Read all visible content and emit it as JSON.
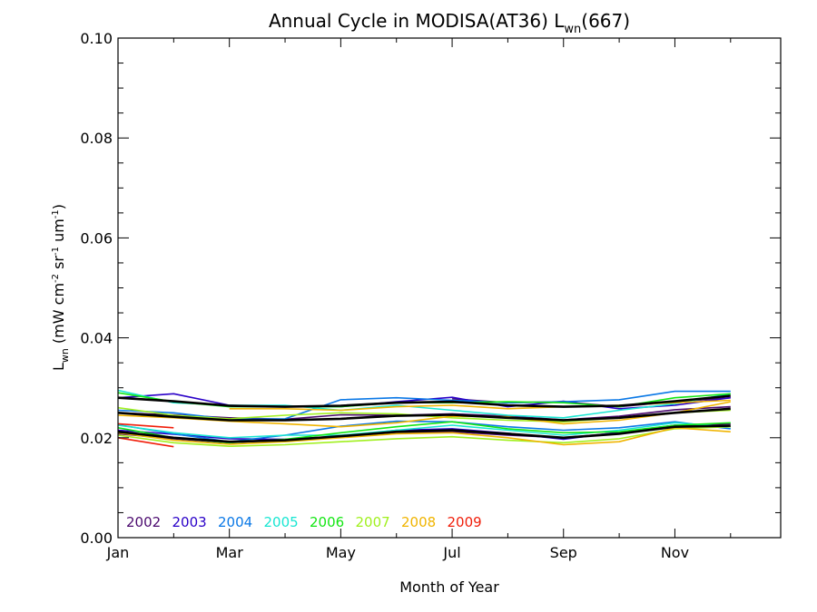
{
  "chart_data": {
    "type": "line",
    "title": "Annual Cycle in MODISA(AT36) L",
    "title_sub": "wn",
    "title_suffix": "(667)",
    "xlabel": "Month of Year",
    "ylabel_main": "L",
    "ylabel_sub": "wn",
    "ylabel_units": " (mW cm",
    "ylabel_exp1": "-2",
    "ylabel_mid1": " sr",
    "ylabel_exp2": "-1",
    "ylabel_mid2": " um",
    "ylabel_exp3": "-1",
    "ylabel_end": ")",
    "xlim": [
      1,
      12.9
    ],
    "ylim": [
      0,
      0.1
    ],
    "x_ticks": [
      {
        "value": 1,
        "label": "Jan"
      },
      {
        "value": 3,
        "label": "Mar"
      },
      {
        "value": 5,
        "label": "May"
      },
      {
        "value": 7,
        "label": "Jul"
      },
      {
        "value": 9,
        "label": "Sep"
      },
      {
        "value": 11,
        "label": "Nov"
      }
    ],
    "y_ticks": [
      {
        "value": 0.0,
        "label": "0.00"
      },
      {
        "value": 0.02,
        "label": "0.02"
      },
      {
        "value": 0.04,
        "label": "0.04"
      },
      {
        "value": 0.06,
        "label": "0.06"
      },
      {
        "value": 0.08,
        "label": "0.08"
      },
      {
        "value": 0.1,
        "label": "0.10"
      }
    ],
    "legend": [
      {
        "label": "2002",
        "color": "#4b0a6e"
      },
      {
        "label": "2003",
        "color": "#2a00c8"
      },
      {
        "label": "2004",
        "color": "#0a78e6"
      },
      {
        "label": "2005",
        "color": "#19e6d2"
      },
      {
        "label": "2006",
        "color": "#14e614"
      },
      {
        "label": "2007",
        "color": "#a0f01e"
      },
      {
        "label": "2008",
        "color": "#f0b400"
      },
      {
        "label": "2009",
        "color": "#f01e0a"
      }
    ],
    "legend_position": "bottom-left",
    "series": [
      {
        "group": "2002",
        "color": "#4b0a6e",
        "x": [
          1,
          2,
          3,
          4,
          5,
          6,
          7,
          8,
          9,
          10,
          11,
          12
        ],
        "y": [
          0.025,
          0.0246,
          0.024,
          0.0237,
          0.0246,
          0.0245,
          0.0248,
          0.0243,
          0.0236,
          0.0243,
          0.0256,
          0.0262
        ]
      },
      {
        "group": "2002",
        "color": "#4b0a6e",
        "x": [
          1,
          2,
          3,
          4,
          5,
          6,
          7,
          8,
          9,
          10,
          11,
          12
        ],
        "y": [
          0.0208,
          0.0198,
          0.019,
          0.0195,
          0.0203,
          0.021,
          0.0212,
          0.0205,
          0.02,
          0.021,
          0.0225,
          0.0228
        ]
      },
      {
        "group": "2002",
        "color": "#4b0a6e",
        "x": [
          7,
          8,
          9,
          10,
          11,
          12
        ],
        "y": [
          0.0278,
          0.027,
          0.0272,
          0.0262,
          0.0272,
          0.028
        ]
      },
      {
        "group": "2003",
        "color": "#2a00c8",
        "x": [
          1,
          2,
          3,
          4,
          5,
          6,
          7,
          8,
          9,
          10,
          11,
          12
        ],
        "y": [
          0.028,
          0.0288,
          0.0265,
          0.0262,
          0.0262,
          0.0272,
          0.0281,
          0.0262,
          0.0273,
          0.0258,
          0.0265,
          0.028
        ]
      },
      {
        "group": "2003",
        "color": "#2a00c8",
        "x": [
          1,
          2,
          3,
          4,
          5,
          6,
          7,
          8,
          9,
          10,
          11,
          12
        ],
        "y": [
          0.0215,
          0.0207,
          0.0198,
          0.0197,
          0.0203,
          0.0215,
          0.0218,
          0.0209,
          0.0197,
          0.0211,
          0.0225,
          0.0222
        ]
      },
      {
        "group": "2004",
        "color": "#0a78e6",
        "x": [
          1,
          2,
          3,
          4,
          5,
          6,
          7,
          8,
          9,
          10,
          11,
          12
        ],
        "y": [
          0.0255,
          0.025,
          0.0237,
          0.0238,
          0.0276,
          0.028,
          0.0275,
          0.027,
          0.0272,
          0.0276,
          0.0293,
          0.0293
        ]
      },
      {
        "group": "2004",
        "color": "#0a78e6",
        "x": [
          1,
          2,
          3,
          4,
          5,
          6,
          7,
          8,
          9,
          10,
          11,
          12
        ],
        "y": [
          0.0226,
          0.0208,
          0.0192,
          0.0205,
          0.0223,
          0.0233,
          0.0232,
          0.0222,
          0.0215,
          0.022,
          0.0232,
          0.0218
        ]
      },
      {
        "group": "2005",
        "color": "#19e6d2",
        "x": [
          1,
          2,
          3,
          4,
          5,
          6,
          7,
          8,
          9,
          10,
          11,
          12
        ],
        "y": [
          0.0295,
          0.027,
          0.0265,
          0.0265,
          0.0255,
          0.0265,
          0.0255,
          0.0245,
          0.024,
          0.0255,
          0.0268,
          0.0288
        ]
      },
      {
        "group": "2005",
        "color": "#19e6d2",
        "x": [
          1,
          2,
          3,
          4,
          5,
          6,
          7,
          8,
          9,
          10,
          11,
          12
        ],
        "y": [
          0.0225,
          0.021,
          0.02,
          0.0205,
          0.0205,
          0.0215,
          0.0225,
          0.0215,
          0.0205,
          0.0215,
          0.023,
          0.0222
        ]
      },
      {
        "group": "2006",
        "color": "#14e614",
        "x": [
          1,
          2,
          3,
          4,
          5,
          6,
          7,
          8,
          9,
          10,
          11,
          12
        ],
        "y": [
          0.029,
          0.0272,
          0.0262,
          0.0262,
          0.0262,
          0.027,
          0.027,
          0.0272,
          0.027,
          0.0262,
          0.028,
          0.0288
        ]
      },
      {
        "group": "2006",
        "color": "#14e614",
        "x": [
          1,
          2,
          3,
          4,
          5,
          6,
          7,
          8,
          9,
          10,
          11,
          12
        ],
        "y": [
          0.022,
          0.02,
          0.019,
          0.0197,
          0.021,
          0.0222,
          0.0232,
          0.0218,
          0.021,
          0.0212,
          0.0225,
          0.023
        ]
      },
      {
        "group": "2007",
        "color": "#a0f01e",
        "x": [
          1,
          2,
          3,
          4,
          5,
          6,
          7,
          8,
          9,
          10,
          11,
          12
        ],
        "y": [
          0.026,
          0.0245,
          0.0238,
          0.0245,
          0.025,
          0.0248,
          0.024,
          0.0235,
          0.0232,
          0.024,
          0.025,
          0.0255
        ]
      },
      {
        "group": "2007",
        "color": "#a0f01e",
        "x": [
          1,
          2,
          3,
          4,
          5,
          6,
          7,
          8,
          9,
          10,
          11,
          12
        ],
        "y": [
          0.0205,
          0.019,
          0.0183,
          0.0186,
          0.0192,
          0.0198,
          0.0202,
          0.0195,
          0.019,
          0.0198,
          0.0218,
          0.0222
        ]
      },
      {
        "group": "2008",
        "color": "#f0b400",
        "x": [
          1,
          2,
          3,
          4,
          5,
          6,
          7,
          8,
          9,
          10,
          11,
          12
        ],
        "y": [
          0.0245,
          0.024,
          0.0233,
          0.0228,
          0.0222,
          0.023,
          0.0243,
          0.0242,
          0.0228,
          0.0235,
          0.025,
          0.0272
        ]
      },
      {
        "group": "2008",
        "color": "#f0b400",
        "x": [
          1,
          2,
          3,
          4,
          5,
          6,
          7,
          8,
          9,
          10,
          11,
          12
        ],
        "y": [
          0.021,
          0.0195,
          0.0187,
          0.0192,
          0.02,
          0.0208,
          0.021,
          0.02,
          0.0186,
          0.0192,
          0.022,
          0.0212
        ]
      },
      {
        "group": "2008",
        "color": "#f0b400",
        "x": [
          3,
          4,
          5,
          6,
          7,
          8,
          9,
          10,
          11,
          12
        ],
        "y": [
          0.0258,
          0.0258,
          0.0255,
          0.0262,
          0.0265,
          0.0258,
          0.0262,
          0.0265,
          0.027,
          0.0275
        ]
      },
      {
        "group": "2009",
        "color": "#f01e0a",
        "x": [
          1,
          2
        ],
        "y": [
          0.0228,
          0.022
        ]
      },
      {
        "group": "2009",
        "color": "#f01e0a",
        "x": [
          1,
          2
        ],
        "y": [
          0.02,
          0.0182
        ]
      },
      {
        "group": "mean",
        "color": "#000000",
        "x": [
          1,
          2,
          3,
          4,
          5,
          6,
          7,
          8,
          9,
          10,
          11,
          12
        ],
        "y": [
          0.028,
          0.0273,
          0.0264,
          0.0262,
          0.0264,
          0.027,
          0.0272,
          0.0265,
          0.0262,
          0.0264,
          0.0273,
          0.0284
        ]
      },
      {
        "group": "mean",
        "color": "#000000",
        "x": [
          1,
          2,
          3,
          4,
          5,
          6,
          7,
          8,
          9,
          10,
          11,
          12
        ],
        "y": [
          0.025,
          0.0242,
          0.0235,
          0.0235,
          0.0238,
          0.0244,
          0.0246,
          0.024,
          0.0235,
          0.024,
          0.025,
          0.0258
        ]
      },
      {
        "group": "mean",
        "color": "#000000",
        "x": [
          1,
          2,
          3,
          4,
          5,
          6,
          7,
          8,
          9,
          10,
          11,
          12
        ],
        "y": [
          0.0212,
          0.02,
          0.0192,
          0.0195,
          0.0203,
          0.0212,
          0.0215,
          0.0208,
          0.02,
          0.0208,
          0.0222,
          0.0224
        ]
      }
    ]
  }
}
